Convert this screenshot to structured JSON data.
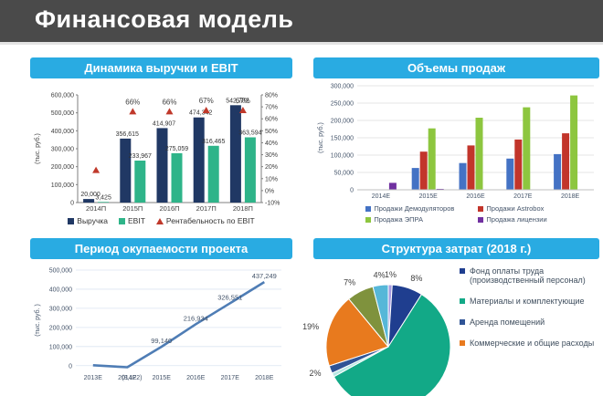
{
  "banner": {
    "title": "Финансовая модель"
  },
  "accent": {
    "header_bg": "#29abe2",
    "banner_bg": "#4a4a4a"
  },
  "chart_data": [
    {
      "type": "combo",
      "title": "Динамика выручки и EBIT",
      "ylabel": "(тыс. руб.)",
      "categories": [
        "2014П",
        "2015П",
        "2016П",
        "2017П",
        "2018П"
      ],
      "series": [
        {
          "name": "Выручка",
          "color": "#203864",
          "values": [
            20000,
            356615,
            414907,
            474342,
            542782
          ],
          "labels": [
            "20,000",
            "356,615",
            "414,907",
            "474,342",
            "542,782"
          ]
        },
        {
          "name": "EBIT",
          "color": "#2eb489",
          "values": [
            3425,
            233967,
            275059,
            316465,
            363594
          ],
          "labels": [
            "3,425",
            "233,967",
            "275,059",
            "316,465",
            "363,594"
          ]
        }
      ],
      "line": {
        "name": "Рентабельность по EBIT",
        "color": "#c0392b",
        "values": [
          17,
          66,
          66,
          67,
          67
        ],
        "labels": [
          "",
          "66%",
          "66%",
          "67%",
          "67%"
        ]
      },
      "y_left": {
        "min": 0,
        "max": 600000,
        "step": 100000
      },
      "y_right": {
        "min": -10,
        "max": 80,
        "step": 10
      }
    },
    {
      "type": "grouped-bar",
      "title": "Объемы продаж",
      "ylabel": "(тыс. руб.)",
      "categories": [
        "2014E",
        "2015E",
        "2016E",
        "2017E",
        "2018E"
      ],
      "series": [
        {
          "name": "Продажи Демодуляторов",
          "color": "#4472c4",
          "values": [
            0,
            63000,
            77000,
            90000,
            103000
          ]
        },
        {
          "name": "Продажи Astrobox",
          "color": "#c2352b",
          "values": [
            0,
            110000,
            128000,
            145000,
            163000
          ]
        },
        {
          "name": "Продажа ЭПРА",
          "color": "#8dc63f",
          "values": [
            0,
            177000,
            208000,
            238000,
            272000
          ]
        },
        {
          "name": "Продажа лицензии",
          "color": "#7030a0",
          "values": [
            20000,
            2500,
            0,
            0,
            0
          ]
        }
      ],
      "y_left": {
        "min": 0,
        "max": 300000,
        "step": 50000
      }
    },
    {
      "type": "line",
      "title": "Период окупаемости проекта",
      "ylabel": "(тыс. руб. )",
      "x": [
        "2013E",
        "2014E",
        "2015E",
        "2016E",
        "2017E",
        "2018E"
      ],
      "values": [
        2000,
        -8122,
        99140,
        216934,
        326551,
        437249
      ],
      "labels": [
        "",
        "(8,122)",
        "99,140",
        "216,934",
        "326,551",
        "437,249"
      ],
      "color": "#4f7db5",
      "y_left": {
        "min": 0,
        "max": 500000,
        "step": 100000
      }
    },
    {
      "type": "pie",
      "title": "Структура затрат (2018 г.)",
      "slices": [
        {
          "label": "1%",
          "value": 1,
          "color": "#a79be0"
        },
        {
          "label": "8%",
          "value": 8,
          "color": "#1f3e8f"
        },
        {
          "label": "",
          "value": 58,
          "color": "#12a987"
        },
        {
          "label": "",
          "value": 1,
          "color": "#b8e8e4"
        },
        {
          "label": "2%",
          "value": 2,
          "color": "#2f5496"
        },
        {
          "label": "19%",
          "value": 19,
          "color": "#e87a1e"
        },
        {
          "label": "7%",
          "value": 7,
          "color": "#7f923d"
        },
        {
          "label": "4%",
          "value": 4,
          "color": "#56b7d8"
        }
      ],
      "legend": [
        {
          "label": "Фонд оплаты труда (производственный персонал)",
          "color": "#1f3e8f"
        },
        {
          "label": "Материалы и комплектующие",
          "color": "#12a987"
        },
        {
          "label": "Аренда помещений",
          "color": "#2f5496"
        },
        {
          "label": "Коммерческие и общие расходы",
          "color": "#e87a1e"
        }
      ]
    }
  ]
}
